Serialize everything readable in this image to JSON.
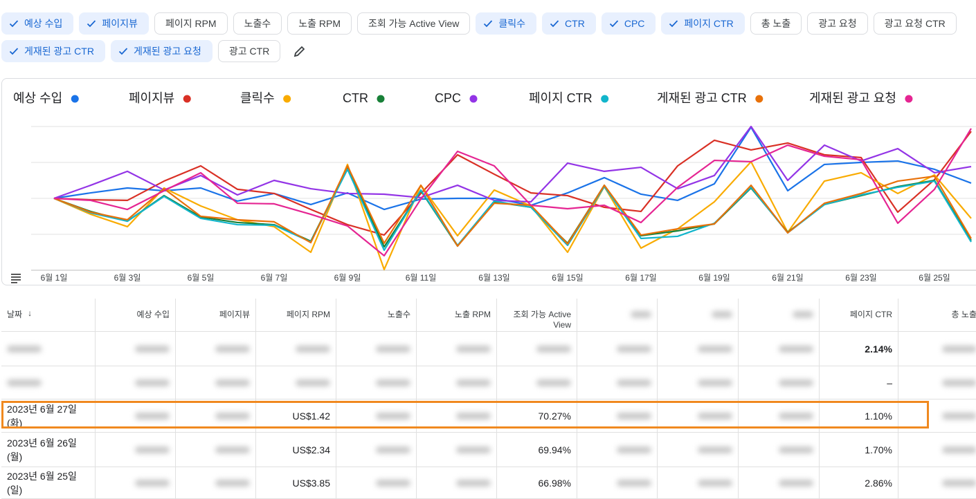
{
  "chips": [
    {
      "label": "예상 수입",
      "selected": true
    },
    {
      "label": "페이지뷰",
      "selected": true
    },
    {
      "label": "페이지 RPM",
      "selected": false
    },
    {
      "label": "노출수",
      "selected": false
    },
    {
      "label": "노출 RPM",
      "selected": false
    },
    {
      "label": "조회 가능 Active View",
      "selected": false
    },
    {
      "label": "클릭수",
      "selected": true
    },
    {
      "label": "CTR",
      "selected": true
    },
    {
      "label": "CPC",
      "selected": true
    },
    {
      "label": "페이지 CTR",
      "selected": true
    },
    {
      "label": "총 노출",
      "selected": false
    },
    {
      "label": "광고 요청",
      "selected": false
    },
    {
      "label": "광고 요청 CTR",
      "selected": false
    },
    {
      "label": "게재된 광고 CTR",
      "selected": true
    },
    {
      "label": "게재된 광고 요청",
      "selected": true
    },
    {
      "label": "광고 CTR",
      "selected": false
    }
  ],
  "chart_data": {
    "type": "line",
    "categories": [
      "6월 1일",
      null,
      "6월 3일",
      null,
      "6월 5일",
      null,
      "6월 7일",
      null,
      "6월 9일",
      null,
      "6월 11일",
      null,
      "6월 13일",
      null,
      "6월 15일",
      null,
      "6월 17일",
      null,
      "6월 19일",
      null,
      "6월 21일",
      null,
      "6월 23일",
      null,
      "6월 25일",
      null
    ],
    "ylim": [
      0,
      100
    ],
    "yticks": [
      0,
      25,
      50,
      75,
      100
    ],
    "grid": true,
    "series": [
      {
        "name": "예상 수입",
        "color": "#1a73e8",
        "values": [
          50,
          53.8,
          57.2,
          55.3,
          57.2,
          48.1,
          53.4,
          45.7,
          53.8,
          42.3,
          49.5,
          50,
          50,
          45.2,
          53.8,
          64.4,
          52.9,
          48.6,
          60.1,
          99.5,
          55.3,
          73.6,
          75,
          76,
          70.2,
          60.6
        ]
      },
      {
        "name": "페이지뷰",
        "color": "#d93025",
        "values": [
          50,
          49,
          48.6,
          62,
          72.6,
          56.3,
          53.4,
          42.3,
          31.7,
          24.5,
          53.4,
          80.3,
          66.8,
          53.8,
          51.9,
          43.8,
          40.9,
          72.6,
          90.4,
          83.7,
          88.5,
          80.3,
          78.4,
          40.4,
          63,
          96.6
        ]
      },
      {
        "name": "클릭수",
        "color": "#f9ab00",
        "values": [
          50,
          38.9,
          30.3,
          57.2,
          44.7,
          35.1,
          30.3,
          12.5,
          73.6,
          0.5,
          59.1,
          24,
          55.8,
          44.7,
          12.5,
          58.2,
          15.4,
          28.8,
          47.6,
          75.5,
          26.4,
          62,
          67.8,
          53.4,
          66.3,
          36.1
        ]
      },
      {
        "name": "CTR",
        "color": "#188038",
        "values": [
          50,
          40.9,
          34.1,
          51.9,
          37,
          33.2,
          31.7,
          20.2,
          71.2,
          16.3,
          55.3,
          16.8,
          47.6,
          43.8,
          18.8,
          59.1,
          24,
          27.4,
          32.2,
          57.2,
          26.4,
          45.7,
          51.9,
          58.2,
          62.5,
          20.7
        ]
      },
      {
        "name": "CPC",
        "color": "#9334e6",
        "values": [
          50,
          59.1,
          68.8,
          55.8,
          65.9,
          52.4,
          62.5,
          56.7,
          53.4,
          52.9,
          50.5,
          59.1,
          48.6,
          47.6,
          74.5,
          68.8,
          71.6,
          56.7,
          65.9,
          100,
          62.5,
          87,
          76,
          84.6,
          67.8,
          72.1
        ]
      },
      {
        "name": "페이지 CTR",
        "color": "#12b5cb",
        "values": [
          50,
          39.9,
          34.1,
          51.4,
          36.1,
          31.7,
          31.3,
          19.7,
          70.2,
          13.9,
          55.8,
          17.3,
          48.1,
          43.8,
          17.3,
          58.2,
          22.1,
          23.6,
          32.7,
          57.7,
          26,
          45.7,
          52.4,
          57.7,
          62,
          19.7
        ]
      },
      {
        "name": "게재된 광고 CTR",
        "color": "#e8710a",
        "values": [
          50,
          40.4,
          35.1,
          56.7,
          37.5,
          35.1,
          33.7,
          19.2,
          72.6,
          18.8,
          59.1,
          16.8,
          46.6,
          45.2,
          18.3,
          59.1,
          24.5,
          28.8,
          32.2,
          59.1,
          26,
          46.6,
          53.4,
          62,
          65.4,
          22.1
        ]
      },
      {
        "name": "게재된 광고 요청",
        "color": "#e52592",
        "values": [
          50,
          48.6,
          42.3,
          55.3,
          67.8,
          46.6,
          46.2,
          38.9,
          30.8,
          10.1,
          49.5,
          82.7,
          72.6,
          45.2,
          42.8,
          45.2,
          33.2,
          57.7,
          76.4,
          75.5,
          87,
          79.3,
          76.9,
          32.7,
          56.3,
          98.6
        ]
      }
    ]
  },
  "table": {
    "headers": [
      "날짜",
      "예상 수입",
      "페이지뷰",
      "페이지 RPM",
      "노출수",
      "노출 RPM",
      "조회 가능 Active View",
      null,
      null,
      null,
      "페이지 CTR",
      "총 노출"
    ],
    "rows": [
      [
        null,
        null,
        null,
        null,
        null,
        null,
        null,
        null,
        null,
        null,
        "2.14%",
        null
      ],
      [
        null,
        null,
        null,
        null,
        null,
        null,
        null,
        null,
        null,
        null,
        "–",
        null
      ],
      [
        "2023년 6월 27일 (화)",
        null,
        null,
        "US$1.42",
        null,
        null,
        "70.27%",
        null,
        null,
        null,
        "1.10%",
        null
      ],
      [
        "2023년 6월 26일 (월)",
        null,
        null,
        "US$2.34",
        null,
        null,
        "69.94%",
        null,
        null,
        null,
        "1.70%",
        null
      ],
      [
        "2023년 6월 25일 (일)",
        null,
        null,
        "US$3.85",
        null,
        null,
        "66.98%",
        null,
        null,
        null,
        "2.86%",
        null
      ]
    ]
  }
}
